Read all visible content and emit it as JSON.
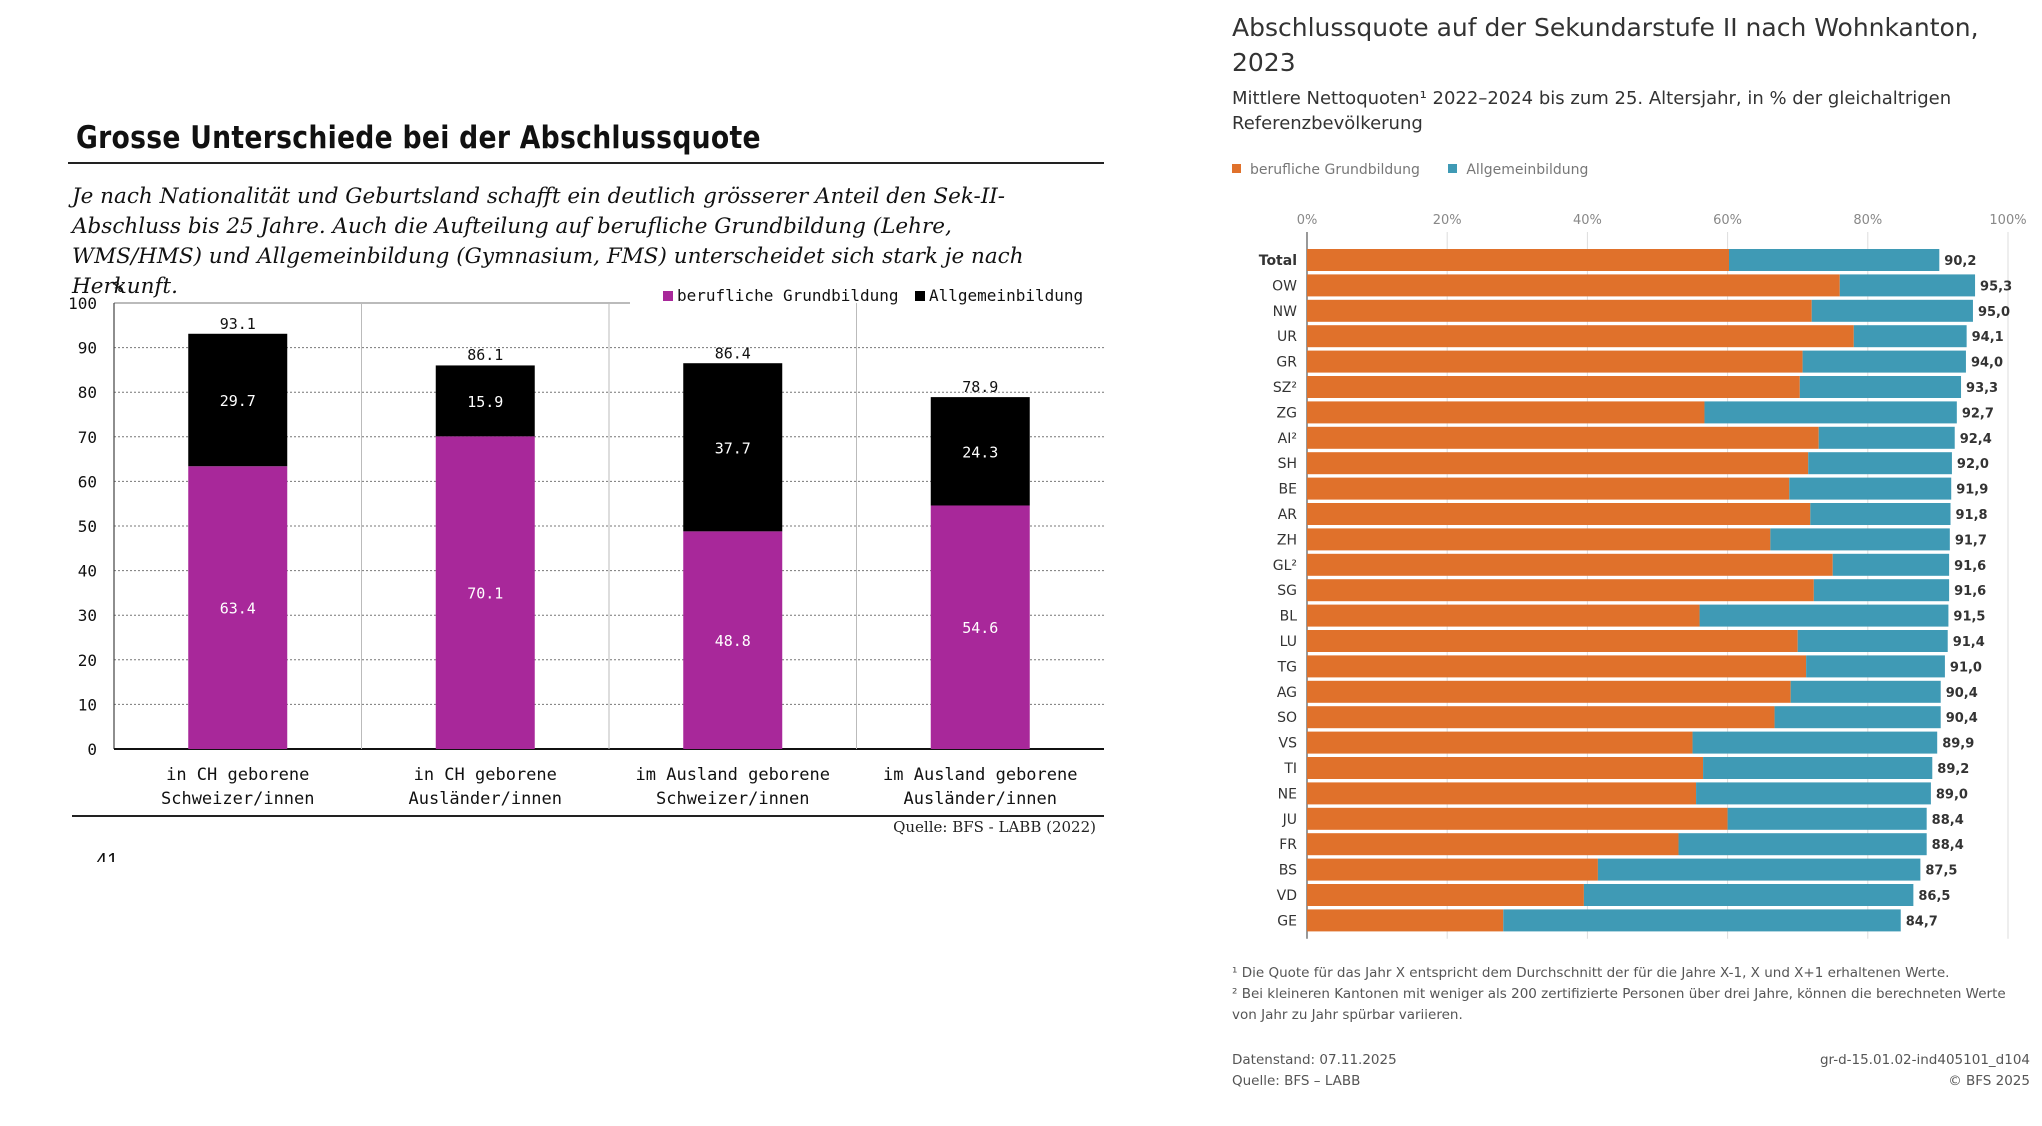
{
  "left": {
    "title": "Grosse Unterschiede bei der Abschlussquote",
    "subtitle": "Je nach Nationalität und Geburtsland schafft ein deutlich grösserer Anteil den Sek-II-Abschluss bis 25 Jahre. Auch die Aufteilung auf berufliche Grundbildung (Lehre, WMS/HMS) und Allgemeinbildung (Gymnasium, FMS) unterscheidet sich stark je nach Herkunft.",
    "source": "Quelle:  BFS - LABB (2022)",
    "page_number": "41"
  },
  "right": {
    "title": "Abschlussquote auf der Sekundarstufe II nach Wohnkanton, 2023",
    "subtitle": "Mittlere Nettoquoten¹ 2022–2024 bis zum 25. Altersjahr, in % der gleichaltrigen Referenzbevölkerung",
    "footnote_1": "¹ Die Quote für das Jahr X entspricht dem Durchschnitt der für die Jahre X-1, X und X+1 erhaltenen Werte.",
    "footnote_2": "² Bei kleineren Kantonen mit weniger als 200 zertifizierte Personen über drei Jahre, können die berechneten Werte von Jahr zu Jahr spürbar variieren.",
    "date": "Datenstand: 07.11.2025",
    "source": "Quelle: BFS – LABB",
    "id": "gr-d-15.01.02-ind405101_d104",
    "copyright": "© BFS 2025"
  },
  "colors": {
    "magenta": "#a8289a",
    "black": "#000000",
    "orange": "#e0712b",
    "teal": "#3f9ab5"
  },
  "chart_data": [
    {
      "type": "bar",
      "stacked": true,
      "orientation": "vertical",
      "ylabel": "%",
      "ylim": [
        0,
        100
      ],
      "yticks": [
        0,
        10,
        20,
        30,
        40,
        50,
        60,
        70,
        80,
        90,
        100
      ],
      "grid": true,
      "legend_position": "top-right",
      "categories": [
        [
          "in CH geborene",
          "Schweizer/innen"
        ],
        [
          "in CH geborene",
          "Ausländer/innen"
        ],
        [
          "im Ausland geborene",
          "Schweizer/innen"
        ],
        [
          "im Ausland geborene",
          "Ausländer/innen"
        ]
      ],
      "series": [
        {
          "name": "berufliche Grundbildung",
          "color": "#a8289a",
          "values": [
            63.4,
            70.1,
            48.8,
            54.6
          ],
          "labels": [
            "63.4",
            "70.1",
            "48.8",
            "54.6"
          ]
        },
        {
          "name": "Allgemeinbildung",
          "color": "#000000",
          "values": [
            29.7,
            15.9,
            37.7,
            24.3
          ],
          "labels": [
            "29.7",
            "15.9",
            "37.7",
            "24.3"
          ]
        }
      ],
      "totals": [
        93.1,
        86.1,
        86.4,
        78.9
      ],
      "total_labels": [
        "93.1",
        "86.1",
        "86.4",
        "78.9"
      ]
    },
    {
      "type": "bar",
      "stacked": true,
      "orientation": "horizontal",
      "xlim": [
        0,
        100
      ],
      "xticks": [
        "0%",
        "20%",
        "40%",
        "60%",
        "80%",
        "100%"
      ],
      "grid": true,
      "legend_position": "top-left",
      "categories": [
        "Total",
        "OW",
        "NW",
        "UR",
        "GR",
        "SZ²",
        "ZG",
        "AI²",
        "SH",
        "BE",
        "AR",
        "ZH",
        "GL²",
        "SG",
        "BL",
        "LU",
        "TG",
        "AG",
        "SO",
        "VS",
        "TI",
        "NE",
        "JU",
        "FR",
        "BS",
        "VD",
        "GE"
      ],
      "bold_categories": [
        "Total"
      ],
      "series": [
        {
          "name": "berufliche Grundbildung",
          "color": "#e0712b",
          "values": [
            60.2,
            76.0,
            72.0,
            78.0,
            70.7,
            70.3,
            56.7,
            73.0,
            71.5,
            68.8,
            71.8,
            66.1,
            75.0,
            72.3,
            56.0,
            70.0,
            71.2,
            69.0,
            66.7,
            55.0,
            56.5,
            55.5,
            60.0,
            53.0,
            41.5,
            39.5,
            28.0
          ]
        },
        {
          "name": "Allgemeinbildung",
          "color": "#3f9ab5",
          "values": [
            30.0,
            19.3,
            23.0,
            16.1,
            23.3,
            23.0,
            36.0,
            19.4,
            20.5,
            23.1,
            20.0,
            25.6,
            16.6,
            19.3,
            35.5,
            21.4,
            19.8,
            21.4,
            23.7,
            34.9,
            32.7,
            33.5,
            28.4,
            35.4,
            46.0,
            47.0,
            56.7
          ]
        }
      ],
      "totals": [
        90.2,
        95.3,
        95.0,
        94.1,
        94.0,
        93.3,
        92.7,
        92.4,
        92.0,
        91.9,
        91.8,
        91.7,
        91.6,
        91.6,
        91.5,
        91.4,
        91.0,
        90.4,
        90.4,
        89.9,
        89.2,
        89.0,
        88.4,
        88.4,
        87.5,
        86.5,
        84.7
      ],
      "total_labels": [
        "90,2",
        "95,3",
        "95,0",
        "94,1",
        "94,0",
        "93,3",
        "92,7",
        "92,4",
        "92,0",
        "91,9",
        "91,8",
        "91,7",
        "91,6",
        "91,6",
        "91,5",
        "91,4",
        "91,0",
        "90,4",
        "90,4",
        "89,9",
        "89,2",
        "89,0",
        "88,4",
        "88,4",
        "87,5",
        "86,5",
        "84,7"
      ]
    }
  ]
}
